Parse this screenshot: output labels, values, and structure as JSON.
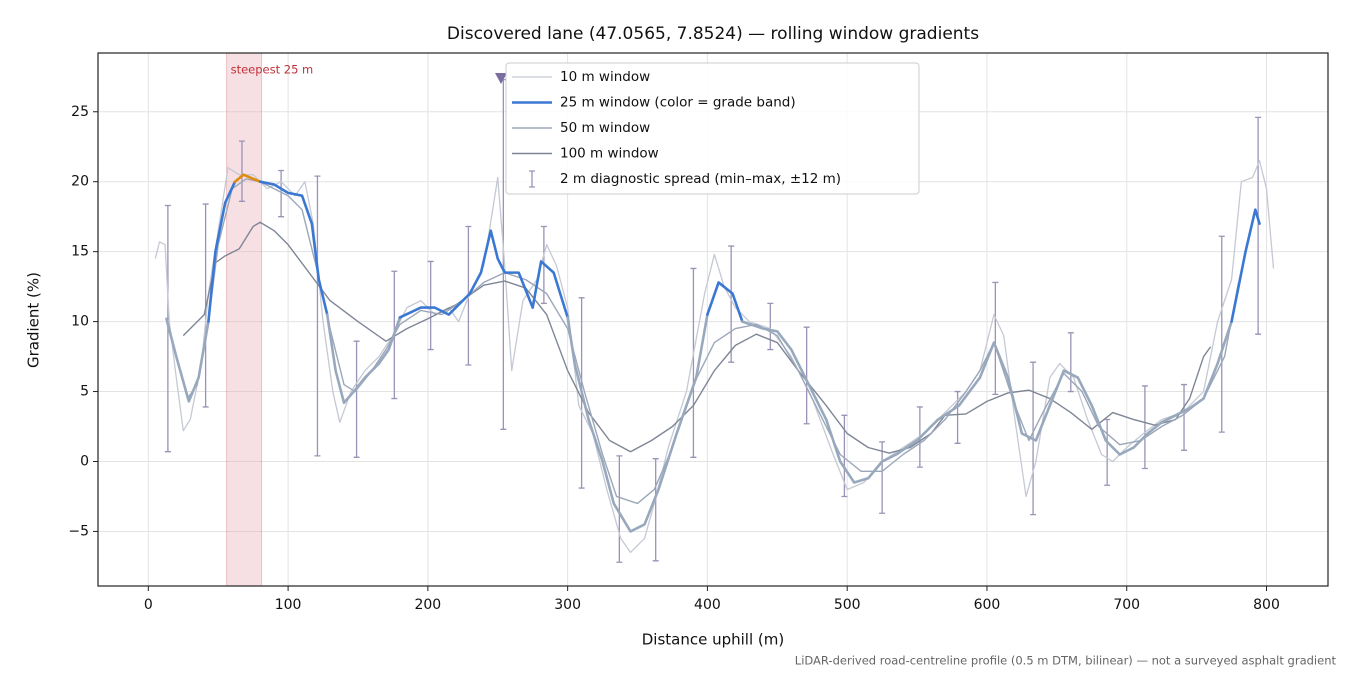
{
  "chart_data": {
    "type": "line",
    "title": "Discovered lane (47.0565, 7.8524) — rolling window gradients",
    "x_label": "Distance uphill (m)",
    "y_label": "Gradient (%)",
    "footnote": "LiDAR-derived road-centreline profile (0.5 m DTM, bilinear) — not a surveyed asphalt gradient",
    "xlim": [
      -36,
      844
    ],
    "ylim": [
      -8.9,
      29.2
    ],
    "xticks": [
      0,
      100,
      200,
      300,
      400,
      500,
      600,
      700,
      800
    ],
    "yticks": [
      {
        "value": -5,
        "label": "−5"
      },
      0,
      5,
      10,
      15,
      20,
      25
    ],
    "grid": true,
    "legend": "upper center",
    "highlight": {
      "label": "steepest 25 m",
      "x": [
        56,
        81
      ],
      "color": "#e9a6ae",
      "text_color": "#c0303a"
    },
    "series": [
      {
        "name": "10 m window",
        "color": "#c4c9d4",
        "width": 1.3,
        "x": [
          5,
          8,
          12,
          15,
          20,
          25,
          30,
          38,
          43,
          50,
          57,
          65,
          75,
          85,
          95,
          105,
          112,
          118,
          125,
          132,
          137,
          145,
          155,
          165,
          175,
          185,
          195,
          205,
          215,
          222,
          230,
          240,
          250,
          255,
          260,
          268,
          278,
          285,
          292,
          300,
          308,
          318,
          328,
          338,
          345,
          355,
          362,
          372,
          385,
          398,
          405,
          412,
          420,
          430,
          445,
          460,
          475,
          490,
          500,
          512,
          525,
          540,
          555,
          570,
          585,
          595,
          605,
          612,
          620,
          628,
          635,
          645,
          652,
          662,
          672,
          682,
          690,
          700,
          712,
          725,
          740,
          755,
          765,
          775,
          782,
          790,
          795,
          800,
          805
        ],
        "values": [
          14.5,
          15.7,
          15.5,
          10,
          6,
          2.2,
          3,
          7,
          12,
          16.5,
          21,
          20.5,
          20.5,
          19.5,
          20,
          19,
          20,
          17,
          10,
          5,
          2.8,
          5,
          6.5,
          7.5,
          9,
          11,
          11.5,
          10.5,
          11,
          10,
          12,
          14,
          20.3,
          14,
          6.5,
          11.5,
          13,
          15.5,
          14,
          11,
          4,
          2,
          -2,
          -5.5,
          -6.5,
          -5.5,
          -3,
          1,
          5,
          12,
          14.8,
          12.5,
          11,
          10,
          9.5,
          7.5,
          4.5,
          0.5,
          -2,
          -1.5,
          0,
          1,
          2,
          3.5,
          5,
          6.5,
          10.5,
          9,
          3,
          -2.5,
          0,
          6,
          7,
          6,
          3,
          0.5,
          0,
          1,
          2,
          3,
          3.5,
          5,
          10,
          13,
          20,
          20.3,
          21.5,
          19.5,
          13.8
        ]
      },
      {
        "name": "25 m window (color = grade band)",
        "color": "#3b78d4",
        "width": 2.6,
        "grade_bands": [
          {
            "min": 20,
            "color": "#e08c0e"
          },
          {
            "min": 10,
            "color": "#3b78d4"
          },
          {
            "min": -100,
            "color": "#98a8bd"
          }
        ],
        "x": [
          13,
          20,
          29,
          36,
          43,
          48,
          55,
          62,
          68,
          80,
          90,
          100,
          110,
          117,
          122,
          128,
          134,
          140,
          147,
          155,
          165,
          172,
          180,
          195,
          205,
          215,
          230,
          238,
          245,
          250,
          255,
          265,
          275,
          281,
          290,
          300,
          305,
          315,
          325,
          333,
          345,
          355,
          365,
          378,
          392,
          400,
          408,
          418,
          425,
          440,
          450,
          460,
          470,
          485,
          495,
          505,
          515,
          525,
          535,
          550,
          565,
          580,
          595,
          605,
          615,
          625,
          635,
          645,
          655,
          665,
          675,
          685,
          695,
          705,
          715,
          725,
          735,
          745,
          755,
          765,
          775,
          785,
          792,
          795
        ],
        "values": [
          10.2,
          7.5,
          4.3,
          6,
          10,
          15,
          18.5,
          20,
          20.5,
          20,
          19.8,
          19.2,
          19,
          17,
          13,
          10.5,
          6.5,
          4.2,
          5,
          6,
          7,
          8,
          10.3,
          11,
          11,
          10.5,
          12,
          13.5,
          16.5,
          14.5,
          13.5,
          13.5,
          11,
          14.3,
          13.5,
          10.3,
          7,
          3,
          0,
          -3,
          -5,
          -4.5,
          -2,
          2,
          6,
          10.5,
          12.8,
          12,
          10,
          9.5,
          9.3,
          8,
          6,
          3,
          0,
          -1.5,
          -1.2,
          0,
          0.5,
          1.5,
          3,
          4,
          6,
          8.5,
          6,
          2,
          1.5,
          4,
          6.5,
          6,
          4,
          1.5,
          0.5,
          1,
          2,
          2.8,
          3.3,
          3.8,
          4.5,
          7,
          10,
          15,
          18,
          17
        ]
      },
      {
        "name": "50 m window",
        "color": "#9ba7b9",
        "width": 1.4,
        "x": [
          13,
          20,
          28,
          35,
          43,
          50,
          60,
          70,
          80,
          90,
          100,
          110,
          120,
          130,
          140,
          148,
          160,
          170,
          180,
          195,
          210,
          225,
          240,
          255,
          270,
          285,
          300,
          312,
          325,
          335,
          350,
          362,
          375,
          390,
          405,
          420,
          435,
          450,
          465,
          480,
          495,
          510,
          525,
          540,
          555,
          570,
          585,
          595,
          605,
          620,
          630,
          640,
          655,
          668,
          680,
          695,
          710,
          725,
          740,
          755,
          770,
          780
        ],
        "values": [
          10,
          7.5,
          4.5,
          5.5,
          10,
          15.5,
          19.5,
          20.2,
          20,
          19.5,
          19,
          18,
          14,
          9.5,
          5.5,
          5,
          6.5,
          8,
          9.8,
          10.8,
          10.5,
          11.5,
          12.8,
          13.5,
          13,
          12,
          9.5,
          5,
          0.5,
          -2.5,
          -3,
          -2,
          1,
          5.5,
          8.5,
          9.5,
          9.8,
          9,
          6.5,
          3.5,
          0.5,
          -0.7,
          -0.7,
          0.5,
          1.5,
          3,
          5,
          6.5,
          8.5,
          4,
          1.5,
          3.5,
          6.3,
          5,
          2.5,
          1.2,
          1.5,
          2.5,
          3.3,
          4.5,
          7.5,
          12.8
        ]
      },
      {
        "name": "100 m window",
        "color": "#7e8696",
        "width": 1.4,
        "x": [
          25,
          40,
          48,
          55,
          65,
          75,
          80,
          90,
          100,
          115,
          130,
          150,
          170,
          185,
          200,
          220,
          240,
          255,
          270,
          285,
          300,
          315,
          330,
          345,
          360,
          375,
          390,
          405,
          420,
          435,
          450,
          465,
          485,
          500,
          515,
          530,
          545,
          560,
          570,
          585,
          600,
          615,
          630,
          645,
          660,
          675,
          690,
          705,
          720,
          735,
          745,
          755,
          760
        ],
        "values": [
          9,
          10.5,
          14.2,
          14.7,
          15.2,
          16.8,
          17.1,
          16.5,
          15.5,
          13.5,
          11.5,
          10,
          8.6,
          9.5,
          10.2,
          11.2,
          12.6,
          12.9,
          12.4,
          10.5,
          6.5,
          3.5,
          1.5,
          0.7,
          1.5,
          2.5,
          4,
          6.5,
          8.3,
          9.1,
          8.5,
          6.5,
          4,
          2,
          1,
          0.6,
          1,
          2,
          3.3,
          3.4,
          4.3,
          4.9,
          5.1,
          4.5,
          3.5,
          2.3,
          3.5,
          3,
          2.6,
          3,
          4.5,
          7.5,
          8.2
        ]
      }
    ],
    "error_bars": {
      "name": "2 m diagnostic spread (min–max, ±12 m)",
      "color": "#9a93b7",
      "x": [
        14,
        41,
        67,
        95,
        121,
        149,
        176,
        202,
        229,
        254,
        283,
        310,
        337,
        363,
        390,
        417,
        445,
        471,
        498,
        525,
        552,
        579,
        606,
        633,
        660,
        686,
        713,
        741,
        768,
        794
      ],
      "low": [
        0.7,
        3.9,
        18.6,
        17.5,
        0.4,
        0.3,
        4.5,
        8,
        6.9,
        2.3,
        11.3,
        -1.9,
        -7.2,
        -7.1,
        0.3,
        7.1,
        8,
        2.7,
        -2.5,
        -3.7,
        -0.4,
        1.3,
        4.8,
        -3.8,
        5,
        -1.7,
        -0.5,
        0.8,
        2.1,
        9.1
      ],
      "high": [
        18.3,
        18.4,
        22.9,
        20.8,
        20.4,
        8.6,
        13.6,
        14.3,
        16.8,
        27.3,
        16.8,
        11.7,
        0.4,
        0.2,
        13.8,
        15.4,
        11.3,
        9.6,
        3.3,
        1.4,
        3.9,
        5,
        12.8,
        7.1,
        9.2,
        3,
        5.4,
        5.5,
        16.1,
        24.6
      ]
    }
  }
}
